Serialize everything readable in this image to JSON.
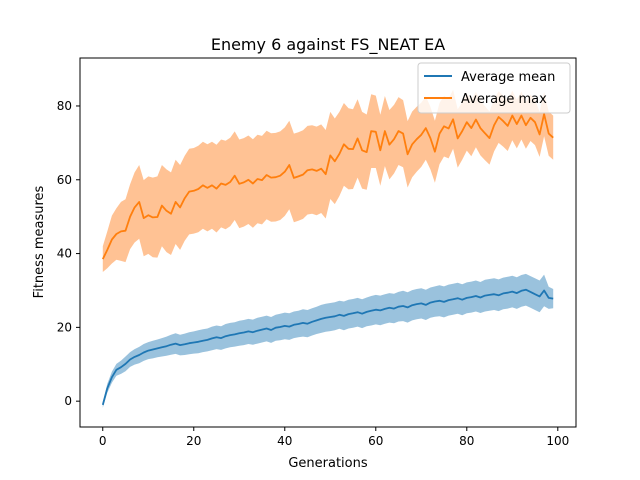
{
  "chart_data": {
    "type": "line",
    "title": "Enemy 6 against FS_NEAT EA",
    "xlabel": "Generations",
    "ylabel": "Fitness measures",
    "xlim": [
      -5,
      104
    ],
    "ylim": [
      -7,
      93
    ],
    "xticks": [
      0,
      20,
      40,
      60,
      80,
      100
    ],
    "yticks": [
      0,
      20,
      40,
      60,
      80
    ],
    "grid": false,
    "legend_position": "upper-right",
    "series": [
      {
        "name": "Average mean",
        "color": "#1f77b4",
        "band_color": "#1f77b4",
        "x": [
          0,
          1,
          2,
          3,
          4,
          5,
          6,
          7,
          8,
          9,
          10,
          11,
          12,
          13,
          14,
          15,
          16,
          17,
          18,
          19,
          20,
          21,
          22,
          23,
          24,
          25,
          26,
          27,
          28,
          29,
          30,
          31,
          32,
          33,
          34,
          35,
          36,
          37,
          38,
          39,
          40,
          41,
          42,
          43,
          44,
          45,
          46,
          47,
          48,
          49,
          50,
          51,
          52,
          53,
          54,
          55,
          56,
          57,
          58,
          59,
          60,
          61,
          62,
          63,
          64,
          65,
          66,
          67,
          68,
          69,
          70,
          71,
          72,
          73,
          74,
          75,
          76,
          77,
          78,
          79,
          80,
          81,
          82,
          83,
          84,
          85,
          86,
          87,
          88,
          89,
          90,
          91,
          92,
          93,
          94,
          95,
          96,
          97,
          98,
          99
        ],
        "values": [
          -1.0,
          3.5,
          6.5,
          8.5,
          9.2,
          10.1,
          11.3,
          12.0,
          12.5,
          13.2,
          13.7,
          14.0,
          14.3,
          14.6,
          14.9,
          15.3,
          15.6,
          15.2,
          15.4,
          15.7,
          15.9,
          16.1,
          16.4,
          16.6,
          17.0,
          17.3,
          17.1,
          17.6,
          17.9,
          18.1,
          18.4,
          18.6,
          18.9,
          18.7,
          19.1,
          19.4,
          19.7,
          19.3,
          19.9,
          20.1,
          20.4,
          20.2,
          20.7,
          20.9,
          21.2,
          21.0,
          21.5,
          21.9,
          22.3,
          22.6,
          22.8,
          23.0,
          23.4,
          23.1,
          23.6,
          23.8,
          24.1,
          23.7,
          24.2,
          24.5,
          24.8,
          24.6,
          25.0,
          25.3,
          25.1,
          25.6,
          25.8,
          25.4,
          26.0,
          26.3,
          26.5,
          26.1,
          26.7,
          27.0,
          27.2,
          26.9,
          27.4,
          27.6,
          27.9,
          27.5,
          28.0,
          28.2,
          28.5,
          28.1,
          28.6,
          28.8,
          29.0,
          28.7,
          29.2,
          29.4,
          29.7,
          29.3,
          29.9,
          30.2,
          29.6,
          29.0,
          28.4,
          30.0,
          28.0,
          27.8
        ],
        "std": [
          0.8,
          1.2,
          1.5,
          1.6,
          1.8,
          2.0,
          2.0,
          2.1,
          2.2,
          2.3,
          2.3,
          2.4,
          2.4,
          2.5,
          2.6,
          2.7,
          2.8,
          2.8,
          2.9,
          3.0,
          3.0,
          3.1,
          3.1,
          3.1,
          3.2,
          3.2,
          3.2,
          3.3,
          3.3,
          3.3,
          3.4,
          3.4,
          3.4,
          3.4,
          3.5,
          3.5,
          3.5,
          3.5,
          3.5,
          3.6,
          3.6,
          3.6,
          3.6,
          3.6,
          3.7,
          3.7,
          3.7,
          3.7,
          3.8,
          3.8,
          3.8,
          3.8,
          3.8,
          3.9,
          3.9,
          3.9,
          3.9,
          3.9,
          3.9,
          4.0,
          4.0,
          4.0,
          4.0,
          4.0,
          4.0,
          4.0,
          4.1,
          4.1,
          4.1,
          4.1,
          4.1,
          4.1,
          4.1,
          4.1,
          4.2,
          4.2,
          4.2,
          4.2,
          4.2,
          4.2,
          4.2,
          4.2,
          4.2,
          4.2,
          4.3,
          4.3,
          4.3,
          4.3,
          4.3,
          4.3,
          4.3,
          4.3,
          4.3,
          4.3,
          4.3,
          4.3,
          4.3,
          4.3,
          3.0,
          2.6
        ]
      },
      {
        "name": "Average max",
        "color": "#ff7f0e",
        "band_color": "#ffbb88",
        "x": [
          0,
          1,
          2,
          3,
          4,
          5,
          6,
          7,
          8,
          9,
          10,
          11,
          12,
          13,
          14,
          15,
          16,
          17,
          18,
          19,
          20,
          21,
          22,
          23,
          24,
          25,
          26,
          27,
          28,
          29,
          30,
          31,
          32,
          33,
          34,
          35,
          36,
          37,
          38,
          39,
          40,
          41,
          42,
          43,
          44,
          45,
          46,
          47,
          48,
          49,
          50,
          51,
          52,
          53,
          54,
          55,
          56,
          57,
          58,
          59,
          60,
          61,
          62,
          63,
          64,
          65,
          66,
          67,
          68,
          69,
          70,
          71,
          72,
          73,
          74,
          75,
          76,
          77,
          78,
          79,
          80,
          81,
          82,
          83,
          84,
          85,
          86,
          87,
          88,
          89,
          90,
          91,
          92,
          93,
          94,
          95,
          96,
          97,
          98,
          99
        ],
        "values": [
          38.5,
          41.0,
          43.8,
          45.3,
          46.0,
          46.2,
          50.0,
          52.5,
          54.0,
          49.6,
          50.4,
          49.8,
          49.9,
          53.0,
          51.6,
          50.8,
          54.0,
          52.5,
          55.0,
          56.8,
          57.0,
          57.5,
          58.5,
          57.8,
          58.5,
          57.6,
          59.0,
          58.6,
          59.4,
          61.1,
          58.9,
          59.3,
          60.0,
          59.0,
          60.2,
          59.9,
          61.3,
          60.6,
          60.7,
          61.1,
          62.2,
          64.0,
          60.5,
          60.9,
          61.4,
          62.6,
          62.8,
          62.4,
          63.0,
          61.5,
          66.6,
          65.0,
          67.0,
          69.6,
          68.4,
          68.3,
          71.2,
          68.0,
          67.5,
          73.2,
          73.0,
          68.0,
          73.2,
          69.5,
          71.0,
          73.2,
          72.5,
          66.9,
          69.6,
          71.0,
          72.2,
          74.0,
          71.3,
          67.6,
          72.5,
          74.5,
          73.9,
          76.4,
          71.2,
          73.2,
          75.6,
          74.0,
          76.3,
          74.0,
          72.6,
          71.3,
          74.8,
          77.0,
          75.9,
          74.6,
          77.4,
          75.1,
          77.4,
          74.8,
          76.8,
          75.6,
          72.3,
          77.8,
          72.5,
          71.4
        ],
        "std": [
          3.5,
          5.0,
          6.5,
          7.0,
          8.0,
          8.5,
          8.8,
          9.5,
          10.0,
          10.3,
          10.5,
          10.8,
          11.0,
          11.0,
          11.2,
          11.2,
          11.4,
          11.5,
          11.5,
          11.6,
          11.6,
          11.7,
          11.8,
          11.8,
          11.8,
          11.9,
          11.9,
          12.0,
          12.0,
          12.0,
          12.0,
          12.0,
          12.0,
          12.0,
          12.0,
          12.0,
          12.0,
          12.0,
          12.0,
          12.0,
          12.0,
          12.0,
          12.0,
          12.0,
          12.0,
          12.0,
          12.0,
          12.0,
          12.0,
          12.0,
          11.8,
          11.6,
          11.4,
          11.2,
          11.0,
          10.8,
          10.6,
          10.4,
          10.2,
          10.0,
          9.8,
          9.6,
          9.5,
          9.4,
          9.3,
          9.2,
          9.1,
          9.0,
          8.9,
          8.8,
          8.7,
          8.6,
          8.5,
          8.4,
          8.3,
          8.2,
          8.1,
          8.0,
          7.9,
          7.8,
          7.7,
          7.6,
          7.5,
          7.4,
          7.3,
          7.2,
          7.1,
          7.0,
          6.9,
          6.8,
          6.7,
          6.6,
          6.5,
          6.4,
          6.3,
          6.2,
          6.1,
          6.0,
          6.0,
          6.0
        ]
      }
    ]
  }
}
